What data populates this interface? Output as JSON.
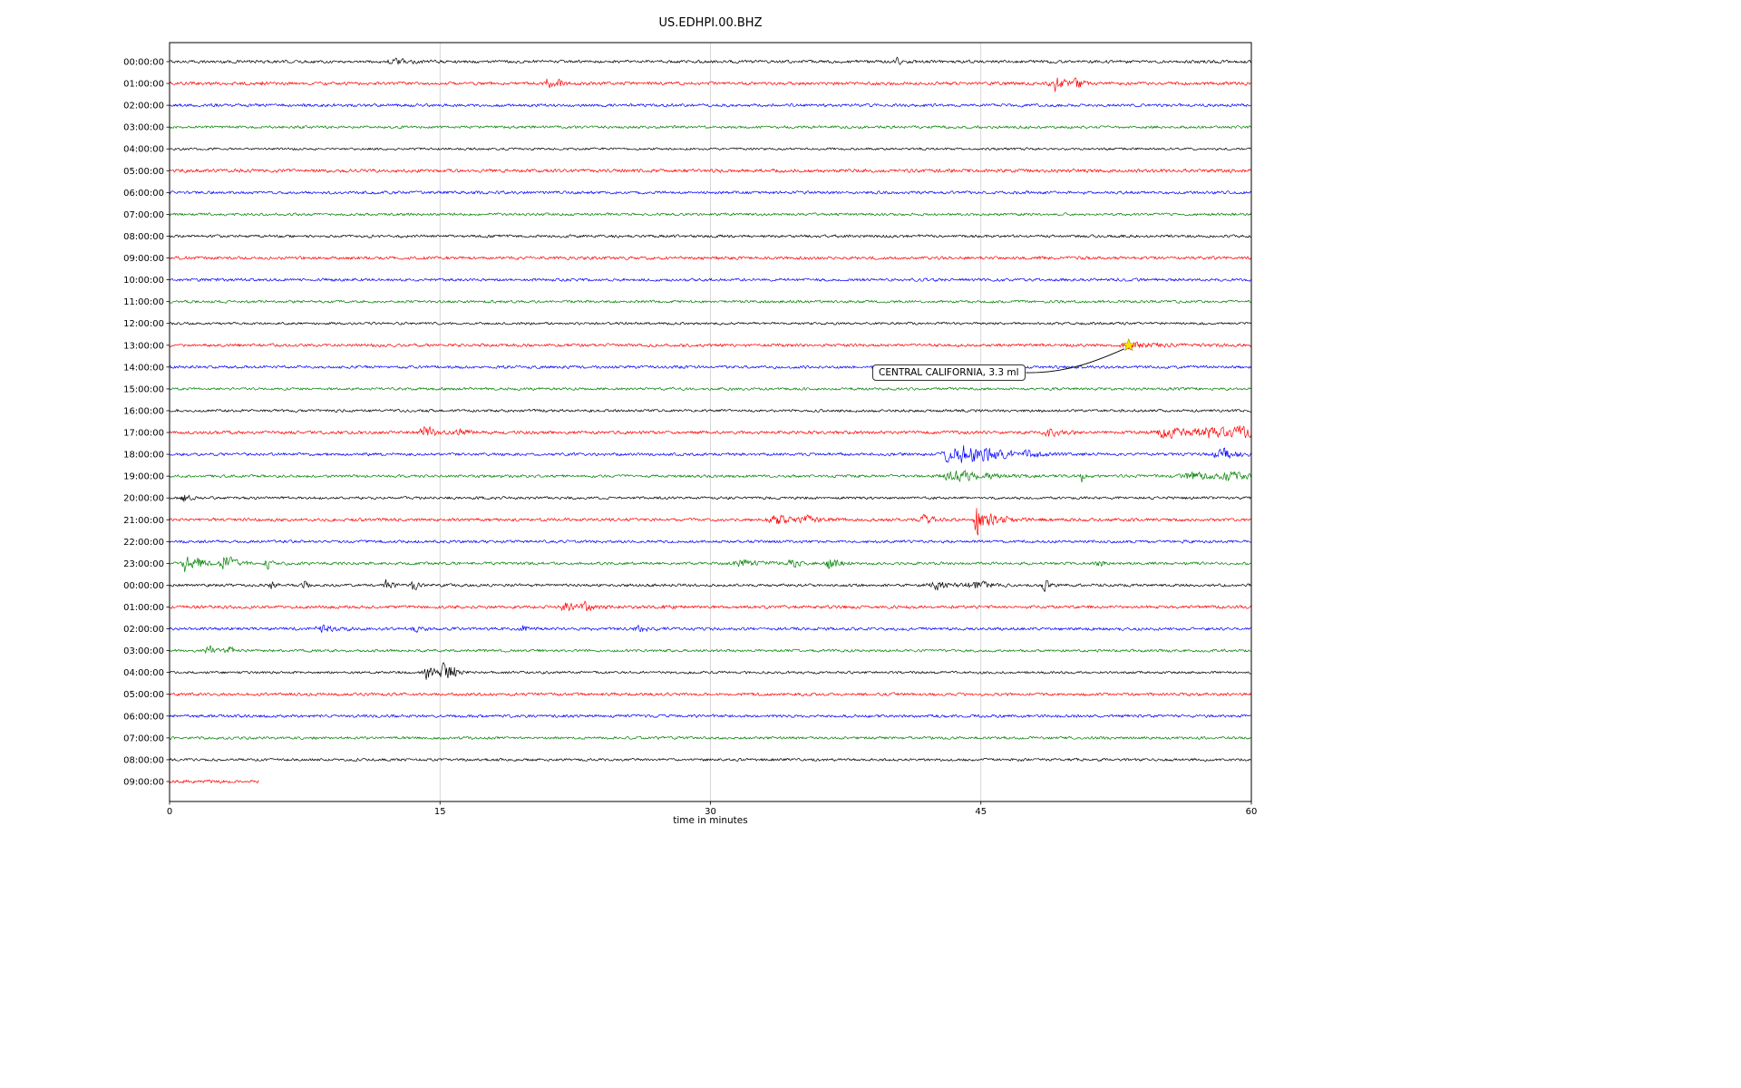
{
  "title": "US.EDHPI.00.BHZ",
  "xlabel": "time in minutes",
  "chart_data": {
    "type": "line",
    "subtype": "seismogram-helicorder",
    "x_range": [
      0,
      60
    ],
    "x_ticks": [
      "0",
      "15",
      "30",
      "45",
      "60"
    ],
    "x_tick_values": [
      0,
      15,
      30,
      45,
      60
    ],
    "grid_minutes": [
      15,
      30,
      45
    ],
    "grid": true,
    "color_cycle": [
      "#000000",
      "#ff0000",
      "#0000ff",
      "#008000"
    ],
    "annotation": {
      "label": "CENTRAL CALIFORNIA, 3.3 ml",
      "row": 13,
      "minute": 53.2,
      "box_minute": 39,
      "marker": "star",
      "marker_color": "#ffe400"
    },
    "rows": [
      {
        "label": "00:00:00",
        "color": "#000000",
        "base": 2.0,
        "events": [
          {
            "m": 12.5,
            "w": 0.8,
            "a": 3
          },
          {
            "m": 40.3,
            "w": 0.15,
            "a": 8
          }
        ]
      },
      {
        "label": "01:00:00",
        "color": "#ff0000",
        "base": 2.2,
        "events": [
          {
            "m": 5.1,
            "w": 0.1,
            "a": 4
          },
          {
            "m": 20.9,
            "w": 0.35,
            "a": 7
          },
          {
            "m": 21.6,
            "w": 0.2,
            "a": 5
          },
          {
            "m": 49.1,
            "w": 0.5,
            "a": 10
          },
          {
            "m": 50.3,
            "w": 0.3,
            "a": 7
          }
        ]
      },
      {
        "label": "02:00:00",
        "color": "#0000ff",
        "base": 2.0,
        "events": []
      },
      {
        "label": "03:00:00",
        "color": "#008000",
        "base": 1.9,
        "events": []
      },
      {
        "label": "04:00:00",
        "color": "#000000",
        "base": 1.6,
        "events": []
      },
      {
        "label": "05:00:00",
        "color": "#ff0000",
        "base": 2.3,
        "events": []
      },
      {
        "label": "06:00:00",
        "color": "#0000ff",
        "base": 2.0,
        "events": []
      },
      {
        "label": "07:00:00",
        "color": "#008000",
        "base": 1.8,
        "events": []
      },
      {
        "label": "08:00:00",
        "color": "#000000",
        "base": 1.9,
        "events": []
      },
      {
        "label": "09:00:00",
        "color": "#ff0000",
        "base": 2.1,
        "events": []
      },
      {
        "label": "10:00:00",
        "color": "#0000ff",
        "base": 2.0,
        "events": []
      },
      {
        "label": "11:00:00",
        "color": "#008000",
        "base": 1.8,
        "events": []
      },
      {
        "label": "12:00:00",
        "color": "#000000",
        "base": 1.7,
        "events": []
      },
      {
        "label": "13:00:00",
        "color": "#ff0000",
        "base": 2.1,
        "events": [
          {
            "m": 53.4,
            "w": 1.2,
            "a": 4
          }
        ]
      },
      {
        "label": "14:00:00",
        "color": "#0000ff",
        "base": 2.0,
        "events": []
      },
      {
        "label": "15:00:00",
        "color": "#008000",
        "base": 1.8,
        "events": []
      },
      {
        "label": "16:00:00",
        "color": "#000000",
        "base": 1.8,
        "events": []
      },
      {
        "label": "17:00:00",
        "color": "#ff0000",
        "base": 2.2,
        "events": [
          {
            "m": 14.2,
            "w": 0.5,
            "a": 9
          },
          {
            "m": 16.2,
            "w": 0.4,
            "a": 4
          },
          {
            "m": 48.8,
            "w": 0.5,
            "a": 6
          },
          {
            "m": 55.3,
            "w": 1.2,
            "a": 7
          },
          {
            "m": 57.6,
            "w": 1.4,
            "a": 7
          },
          {
            "m": 59.3,
            "w": 0.8,
            "a": 6
          }
        ]
      },
      {
        "label": "18:00:00",
        "color": "#0000ff",
        "base": 2.0,
        "events": [
          {
            "m": 43.6,
            "w": 1.1,
            "a": 18
          },
          {
            "m": 45.2,
            "w": 1.5,
            "a": 5
          },
          {
            "m": 47.6,
            "w": 0.4,
            "a": 5
          },
          {
            "m": 58.4,
            "w": 0.8,
            "a": 8
          }
        ]
      },
      {
        "label": "19:00:00",
        "color": "#008000",
        "base": 1.9,
        "events": [
          {
            "m": 43.8,
            "w": 1.5,
            "a": 7
          },
          {
            "m": 50.6,
            "w": 0.15,
            "a": 8
          },
          {
            "m": 56.8,
            "w": 1.2,
            "a": 5
          },
          {
            "m": 58.9,
            "w": 0.9,
            "a": 6
          }
        ]
      },
      {
        "label": "20:00:00",
        "color": "#000000",
        "base": 1.8,
        "events": [
          {
            "m": 0.8,
            "w": 0.3,
            "a": 6
          }
        ]
      },
      {
        "label": "21:00:00",
        "color": "#ff0000",
        "base": 2.1,
        "events": [
          {
            "m": 33.7,
            "w": 0.9,
            "a": 6
          },
          {
            "m": 35.3,
            "w": 0.5,
            "a": 5
          },
          {
            "m": 41.9,
            "w": 0.5,
            "a": 6
          },
          {
            "m": 44.75,
            "w": 0.25,
            "a": 30
          },
          {
            "m": 45.5,
            "w": 0.8,
            "a": 8
          }
        ]
      },
      {
        "label": "22:00:00",
        "color": "#0000ff",
        "base": 1.9,
        "events": []
      },
      {
        "label": "23:00:00",
        "color": "#008000",
        "base": 1.9,
        "events": [
          {
            "m": 0.9,
            "w": 0.4,
            "a": 12
          },
          {
            "m": 1.6,
            "w": 0.3,
            "a": 9
          },
          {
            "m": 3.1,
            "w": 0.5,
            "a": 12
          },
          {
            "m": 5.4,
            "w": 0.2,
            "a": 8
          },
          {
            "m": 31.8,
            "w": 0.8,
            "a": 5
          },
          {
            "m": 34.4,
            "w": 0.4,
            "a": 7
          },
          {
            "m": 36.6,
            "w": 0.35,
            "a": 14
          },
          {
            "m": 51.5,
            "w": 0.25,
            "a": 6
          }
        ]
      },
      {
        "label": "00:00:00",
        "color": "#000000",
        "base": 1.9,
        "events": [
          {
            "m": 5.6,
            "w": 0.15,
            "a": 8
          },
          {
            "m": 7.4,
            "w": 0.15,
            "a": 9
          },
          {
            "m": 12.0,
            "w": 0.3,
            "a": 7
          },
          {
            "m": 13.5,
            "w": 0.3,
            "a": 7
          },
          {
            "m": 42.6,
            "w": 0.9,
            "a": 5
          },
          {
            "m": 44.6,
            "w": 0.7,
            "a": 6
          },
          {
            "m": 48.5,
            "w": 0.2,
            "a": 9
          }
        ]
      },
      {
        "label": "01:00:00",
        "color": "#ff0000",
        "base": 2.1,
        "events": [
          {
            "m": 22.0,
            "w": 0.6,
            "a": 6
          },
          {
            "m": 23.1,
            "w": 0.4,
            "a": 5
          },
          {
            "m": 27.5,
            "w": 0.3,
            "a": 5
          }
        ]
      },
      {
        "label": "02:00:00",
        "color": "#0000ff",
        "base": 2.0,
        "events": [
          {
            "m": 8.6,
            "w": 0.8,
            "a": 4
          },
          {
            "m": 13.6,
            "w": 0.3,
            "a": 4
          },
          {
            "m": 19.6,
            "w": 0.3,
            "a": 5
          },
          {
            "m": 26.0,
            "w": 0.4,
            "a": 4
          }
        ]
      },
      {
        "label": "03:00:00",
        "color": "#008000",
        "base": 1.8,
        "events": [
          {
            "m": 2.2,
            "w": 0.5,
            "a": 5
          },
          {
            "m": 3.3,
            "w": 0.3,
            "a": 4
          }
        ]
      },
      {
        "label": "04:00:00",
        "color": "#000000",
        "base": 1.7,
        "events": [
          {
            "m": 14.3,
            "w": 0.35,
            "a": 12
          },
          {
            "m": 15.2,
            "w": 0.3,
            "a": 15
          },
          {
            "m": 15.7,
            "w": 0.25,
            "a": 9
          }
        ]
      },
      {
        "label": "05:00:00",
        "color": "#ff0000",
        "base": 2.0,
        "events": []
      },
      {
        "label": "06:00:00",
        "color": "#0000ff",
        "base": 2.0,
        "events": []
      },
      {
        "label": "07:00:00",
        "color": "#008000",
        "base": 1.8,
        "events": []
      },
      {
        "label": "08:00:00",
        "color": "#000000",
        "base": 1.8,
        "events": []
      },
      {
        "label": "09:00:00",
        "color": "#ff0000",
        "base": 2.2,
        "end": 5.0,
        "events": []
      }
    ]
  }
}
